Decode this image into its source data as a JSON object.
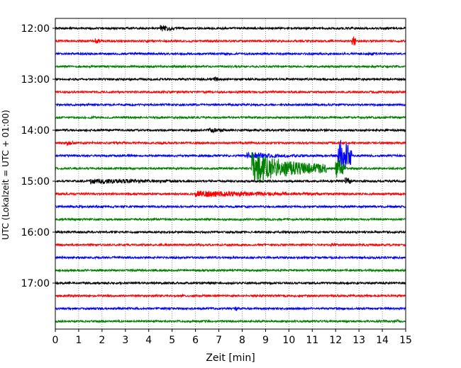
{
  "chart_data": {
    "type": "line",
    "subtype": "helicorder",
    "xlabel": "Zeit  [min]",
    "ylabel": "UTC (Lokalzeit = UTC + 01:00)",
    "xlim": [
      0,
      15
    ],
    "x_ticks": [
      "0",
      "1",
      "2",
      "3",
      "4",
      "5",
      "6",
      "7",
      "8",
      "9",
      "10",
      "11",
      "12",
      "13",
      "14",
      "15"
    ],
    "vertical_grid": "dotted at every minute",
    "y_ticks": [
      "12:00",
      "13:00",
      "14:00",
      "15:00",
      "16:00",
      "17:00"
    ],
    "trace_colors": [
      "#000000",
      "#ff0000",
      "#0000ff",
      "#008000"
    ],
    "traces": [
      {
        "start": "12:00",
        "events": [
          {
            "t": 4.5,
            "amp": 5,
            "dur": 0.6
          }
        ]
      },
      {
        "start": "12:15",
        "events": [
          {
            "t": 1.7,
            "amp": 4,
            "dur": 0.3
          },
          {
            "t": 12.7,
            "amp": 8,
            "dur": 0.2
          }
        ]
      },
      {
        "start": "12:30",
        "events": [
          {
            "t": 13.4,
            "amp": 3,
            "dur": 0.3
          }
        ]
      },
      {
        "start": "12:45",
        "events": []
      },
      {
        "start": "13:00",
        "events": [
          {
            "t": 6.8,
            "amp": 5,
            "dur": 0.2
          }
        ]
      },
      {
        "start": "13:15",
        "events": []
      },
      {
        "start": "13:30",
        "events": []
      },
      {
        "start": "13:45",
        "events": []
      },
      {
        "start": "14:00",
        "events": [
          {
            "t": 6.5,
            "amp": 4,
            "dur": 0.8
          }
        ]
      },
      {
        "start": "14:15",
        "events": [
          {
            "t": 0.5,
            "amp": 4,
            "dur": 0.3
          }
        ]
      },
      {
        "start": "14:30",
        "events": [
          {
            "t": 8.2,
            "amp": 5,
            "dur": 3.8
          },
          {
            "t": 12.1,
            "amp": 26,
            "dur": 0.6
          }
        ]
      },
      {
        "start": "14:45",
        "events": [
          {
            "t": 8.4,
            "amp": 26,
            "dur": 3.2
          },
          {
            "t": 12.0,
            "amp": 14,
            "dur": 0.4
          }
        ]
      },
      {
        "start": "15:00",
        "events": [
          {
            "t": 1.5,
            "amp": 4,
            "dur": 7.5
          },
          {
            "t": 12.4,
            "amp": 6,
            "dur": 0.3
          }
        ]
      },
      {
        "start": "15:15",
        "events": [
          {
            "t": 6.0,
            "amp": 5,
            "dur": 8.2
          }
        ]
      },
      {
        "start": "15:30",
        "events": []
      },
      {
        "start": "15:45",
        "events": []
      },
      {
        "start": "16:00",
        "events": []
      },
      {
        "start": "16:15",
        "events": [
          {
            "t": 11.8,
            "amp": 3,
            "dur": 0.3
          }
        ]
      },
      {
        "start": "16:30",
        "events": []
      },
      {
        "start": "16:45",
        "events": []
      },
      {
        "start": "17:00",
        "events": []
      },
      {
        "start": "17:15",
        "events": []
      },
      {
        "start": "17:30",
        "events": [
          {
            "t": 7.7,
            "amp": 3,
            "dur": 0.2
          }
        ]
      },
      {
        "start": "17:45",
        "events": [
          {
            "t": 14.6,
            "amp": 3,
            "dur": 0.2
          }
        ]
      }
    ]
  }
}
